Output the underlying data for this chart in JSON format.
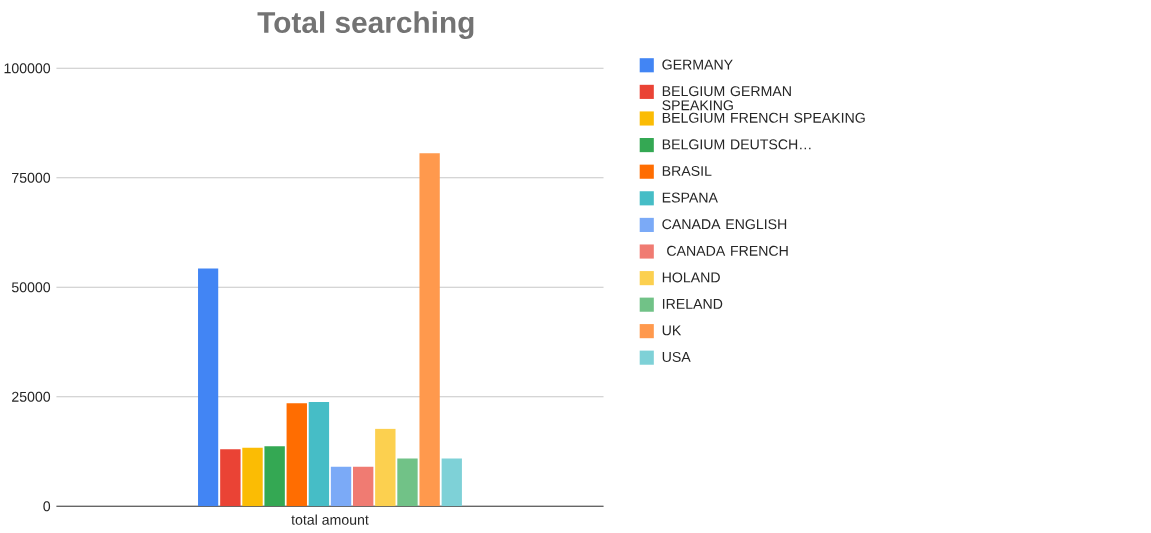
{
  "chart_data": {
    "type": "bar",
    "title": "Total searching",
    "categories": [
      "total amount"
    ],
    "series": [
      {
        "name": "GERMANY",
        "color": "#4285f4",
        "values": [
          54300
        ]
      },
      {
        "name": "BELGIUM GERMAN SPEAKING",
        "color": "#ea4335",
        "values": [
          13000
        ]
      },
      {
        "name": "BELGIUM FRENCH SPEAKING",
        "color": "#fbbc04",
        "values": [
          13400
        ]
      },
      {
        "name": "BELGIUM DEUTSCH…",
        "color": "#34a853",
        "values": [
          13700
        ]
      },
      {
        "name": "BRASIL",
        "color": "#ff6d01",
        "values": [
          23500
        ]
      },
      {
        "name": "ESPANA",
        "color": "#46bdc6",
        "values": [
          23800
        ]
      },
      {
        "name": "CANADA ENGLISH",
        "color": "#7baaf7",
        "values": [
          9100
        ]
      },
      {
        "name": " CANADA FRENCH",
        "color": "#f07b72",
        "values": [
          9100
        ]
      },
      {
        "name": "HOLAND",
        "color": "#fcd04f",
        "values": [
          17700
        ]
      },
      {
        "name": "IRELAND",
        "color": "#71c287",
        "values": [
          10900
        ]
      },
      {
        "name": "UK",
        "color": "#ff994d",
        "values": [
          80600
        ]
      },
      {
        "name": "USA",
        "color": "#7ed1d7",
        "values": [
          10900
        ]
      }
    ],
    "ylim": [
      0,
      100000
    ],
    "yticks": [
      0,
      25000,
      50000,
      75000,
      100000
    ],
    "grid": "y",
    "legend": "right"
  }
}
